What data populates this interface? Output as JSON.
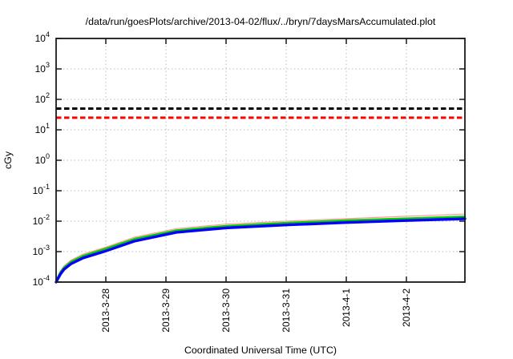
{
  "title": "/data/run/goesPlots/archive/2013-04-02/flux/../bryn/7daysMarsAccumulated.plot",
  "axes": {
    "xlabel": "Coordinated Universal Time (UTC)",
    "ylabel": "cGy"
  },
  "chart_data": {
    "type": "line",
    "title": "/data/run/goesPlots/archive/2013-04-02/flux/../bryn/7daysMarsAccumulated.plot",
    "xlabel": "Coordinated Universal Time (UTC)",
    "ylabel": "cGy",
    "y_scale": "log10",
    "y_log_range": [
      -4,
      4
    ],
    "y_tick_exponents": [
      4,
      3,
      2,
      1,
      0,
      -1,
      -2,
      -3,
      -4
    ],
    "x_range_days": [
      0,
      6.8
    ],
    "x_ticks": [
      {
        "t": 0.827,
        "label": "2013-3-28"
      },
      {
        "t": 1.827,
        "label": "2013-3-29"
      },
      {
        "t": 2.827,
        "label": "2013-3-30"
      },
      {
        "t": 3.827,
        "label": "2013-3-31"
      },
      {
        "t": 4.827,
        "label": "2013-4-1"
      },
      {
        "t": 5.827,
        "label": "2013-4-2"
      }
    ],
    "grid": true,
    "legend": false,
    "grid_color": "#bbbbbb",
    "frame_color": "#1a1a1a",
    "thresholds": [
      {
        "name": "upper-dose-limit-dashed",
        "value_cGy": 50,
        "color": "#000000",
        "style": "dashed",
        "width": 3
      },
      {
        "name": "lower-dose-limit-dashed",
        "value_cGy": 25,
        "color": "#ff0000",
        "style": "dashed",
        "width": 3
      }
    ],
    "series": [
      {
        "name": "accumulated-dose-upper-red",
        "color": "#ff9999",
        "width": 1.2,
        "t_days": [
          0,
          0.03,
          0.07,
          0.13,
          0.25,
          0.45,
          0.827,
          1.3,
          2.0,
          2.827,
          3.827,
          4.827,
          5.827,
          6.8
        ],
        "values_cGy": [
          0.0001,
          0.00016,
          0.00023,
          0.00034,
          0.00053,
          0.00083,
          0.0014,
          0.00295,
          0.0057,
          0.008,
          0.01,
          0.0121,
          0.0145,
          0.017
        ]
      },
      {
        "name": "accumulated-dose-mid-green",
        "color": "#00cc00",
        "width": 2.4,
        "t_days": [
          0,
          0.03,
          0.07,
          0.13,
          0.25,
          0.45,
          0.827,
          1.3,
          2.0,
          2.827,
          3.827,
          4.827,
          5.827,
          6.8
        ],
        "values_cGy": [
          0.0001,
          0.000145,
          0.00021,
          0.0003,
          0.00047,
          0.00073,
          0.00125,
          0.0026,
          0.005,
          0.007,
          0.0088,
          0.0106,
          0.0123,
          0.0142
        ]
      },
      {
        "name": "accumulated-dose-lower-blue",
        "color": "#0000ff",
        "width": 3.4,
        "t_days": [
          0,
          0.03,
          0.07,
          0.13,
          0.25,
          0.45,
          0.827,
          1.3,
          2.0,
          2.827,
          3.827,
          4.827,
          5.827,
          6.8
        ],
        "values_cGy": [
          0.0001,
          0.00013,
          0.00018,
          0.00026,
          0.0004,
          0.00062,
          0.00105,
          0.0022,
          0.0043,
          0.006,
          0.0075,
          0.009,
          0.0105,
          0.012
        ]
      }
    ]
  }
}
